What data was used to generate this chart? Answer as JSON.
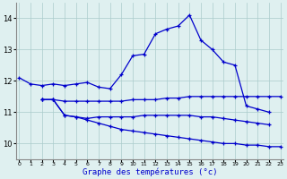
{
  "title": "Graphe des températures (°c)",
  "background_color": "#dff0f0",
  "line_color": "#0000cc",
  "ylim": [
    9.5,
    14.5
  ],
  "yticks": [
    10,
    11,
    12,
    13,
    14
  ],
  "xlim": [
    -0.3,
    23.3
  ],
  "xticks": [
    0,
    1,
    2,
    3,
    4,
    5,
    6,
    7,
    8,
    9,
    10,
    11,
    12,
    13,
    14,
    15,
    16,
    17,
    18,
    19,
    20,
    21,
    22,
    23
  ],
  "series": [
    {
      "x": [
        0,
        1,
        2,
        3,
        4,
        5,
        6,
        7,
        8,
        9,
        10,
        11,
        12,
        13,
        14,
        15,
        16,
        17,
        18,
        19,
        20,
        21,
        22,
        23
      ],
      "y": [
        12.1,
        11.9,
        11.85,
        11.9,
        11.85,
        11.9,
        11.95,
        11.8,
        11.75,
        12.2,
        12.8,
        12.85,
        13.5,
        13.65,
        13.75,
        14.1,
        13.3,
        13.0,
        12.6,
        12.5,
        11.2,
        11.1,
        11.0,
        null
      ]
    },
    {
      "x": [
        2,
        3,
        4,
        5,
        6,
        7,
        8,
        9,
        10,
        11,
        12,
        13,
        14,
        15,
        16,
        17,
        18,
        19,
        20,
        21,
        22,
        23
      ],
      "y": [
        11.4,
        11.4,
        11.35,
        11.35,
        11.35,
        11.35,
        11.35,
        11.35,
        11.4,
        11.4,
        11.4,
        11.45,
        11.45,
        11.5,
        11.5,
        11.5,
        11.5,
        11.5,
        11.5,
        11.5,
        11.5,
        11.5
      ]
    },
    {
      "x": [
        2,
        3,
        4,
        5,
        6,
        7,
        8,
        9,
        10,
        11,
        12,
        13,
        14,
        15,
        16,
        17,
        18,
        19,
        20,
        21,
        22,
        23
      ],
      "y": [
        11.4,
        11.4,
        10.9,
        10.85,
        10.8,
        10.85,
        10.85,
        10.85,
        10.85,
        10.9,
        10.9,
        10.9,
        10.9,
        10.9,
        10.85,
        10.85,
        10.8,
        10.75,
        10.7,
        10.65,
        10.6,
        null
      ]
    },
    {
      "x": [
        2,
        3,
        4,
        5,
        6,
        7,
        8,
        9,
        10,
        11,
        12,
        13,
        14,
        15,
        16,
        17,
        18,
        19,
        20,
        21,
        22,
        23
      ],
      "y": [
        11.4,
        11.4,
        10.9,
        10.85,
        10.75,
        10.65,
        10.55,
        10.45,
        10.4,
        10.35,
        10.3,
        10.25,
        10.2,
        10.15,
        10.1,
        10.05,
        10.0,
        10.0,
        9.95,
        9.95,
        9.9,
        9.9
      ]
    }
  ]
}
